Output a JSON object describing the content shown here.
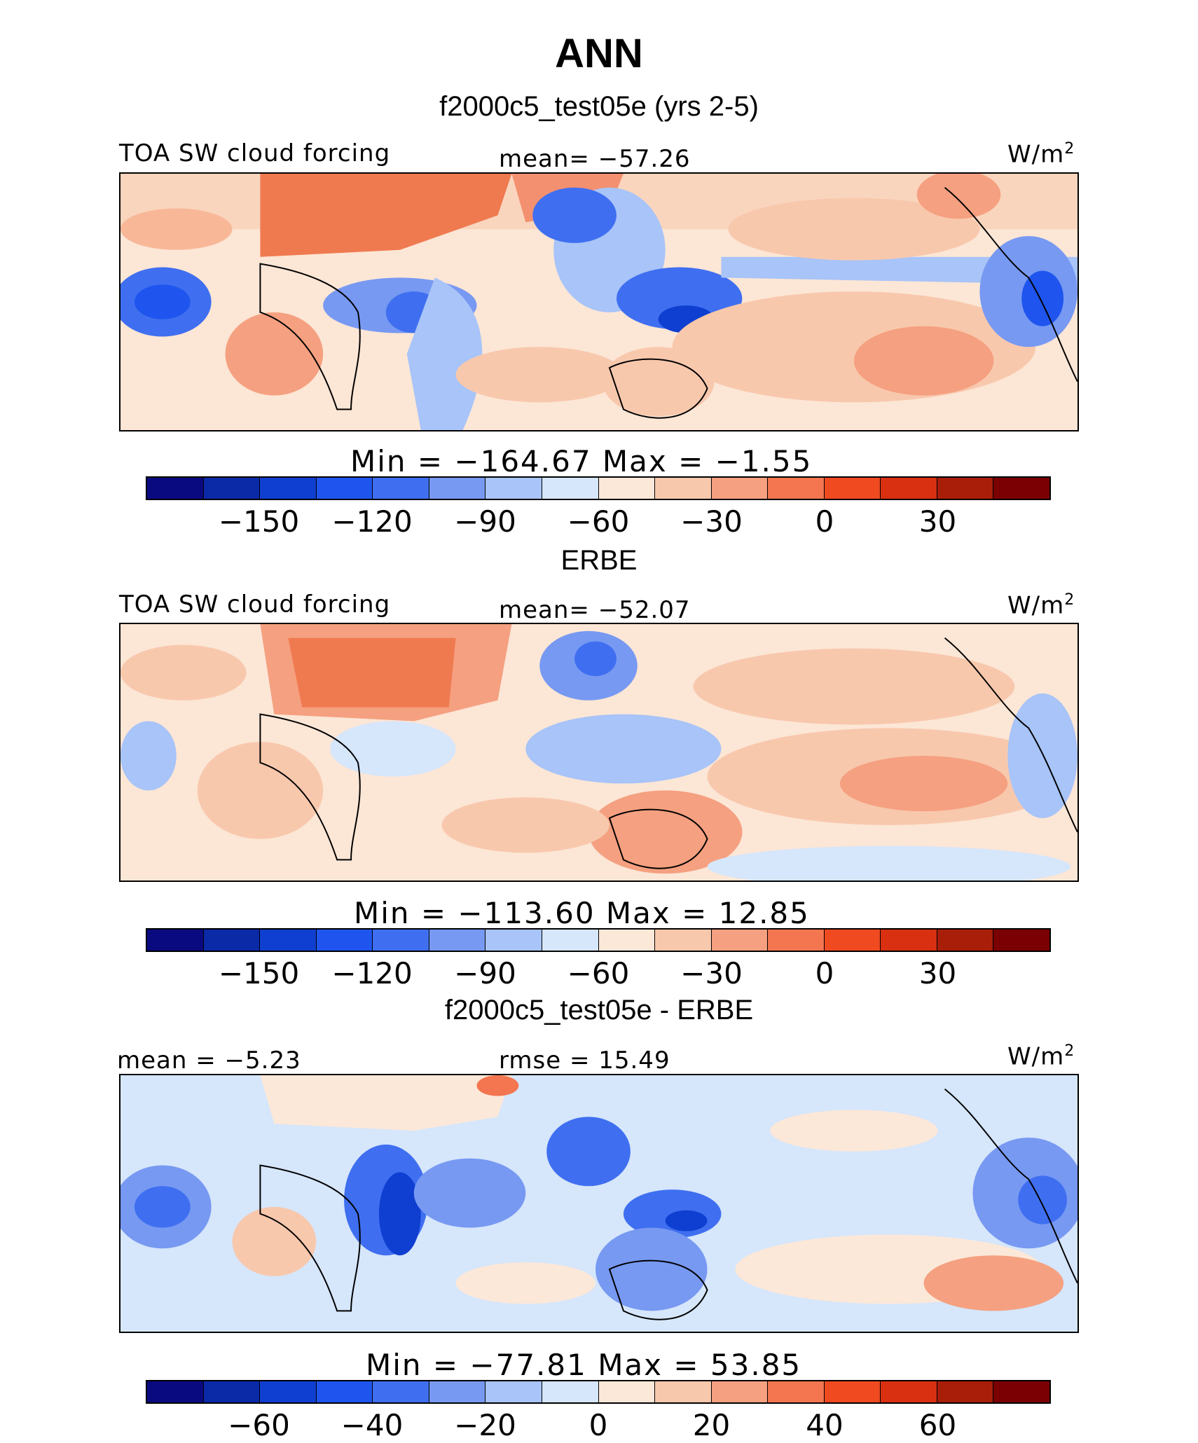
{
  "figure": {
    "title": "ANN",
    "subtitle": "f2000c5_test05e (yrs 2-5)"
  },
  "colorbar_colors": [
    "#0a0a80",
    "#0a2aa8",
    "#0f3fd0",
    "#1f55ee",
    "#3f6ff0",
    "#7799f2",
    "#a8c4f8",
    "#d6e6fb",
    "#fce8d8",
    "#f8c8ad",
    "#f5a080",
    "#f37650",
    "#f04a20",
    "#d83010",
    "#a81e08",
    "#7a0004"
  ],
  "panels": [
    {
      "section_title": "",
      "left_label": "TOA SW cloud forcing",
      "center_label": "mean= −57.26",
      "units_label": "W/m",
      "units_sup": "2",
      "stats": "Min  =  −164.67  Max  =    −1.55",
      "ticks": [
        "−150",
        "−120",
        "−90",
        "−60",
        "−30",
        "0",
        "30"
      ]
    },
    {
      "section_title": "ERBE",
      "left_label": "TOA SW cloud forcing",
      "center_label": "mean= −52.07",
      "units_label": "W/m",
      "units_sup": "2",
      "stats": "Min  =  −113.60  Max  =    12.85",
      "ticks": [
        "−150",
        "−120",
        "−90",
        "−60",
        "−30",
        "0",
        "30"
      ]
    },
    {
      "section_title": "f2000c5_test05e - ERBE",
      "left_label": "mean  =   −5.23",
      "center_label": "rmse  =   15.49",
      "units_label": "W/m",
      "units_sup": "2",
      "stats": "Min  =  −77.81  Max  =   53.85",
      "ticks": [
        "−60",
        "−40",
        "−20",
        "0",
        "20",
        "40",
        "60"
      ]
    }
  ]
}
